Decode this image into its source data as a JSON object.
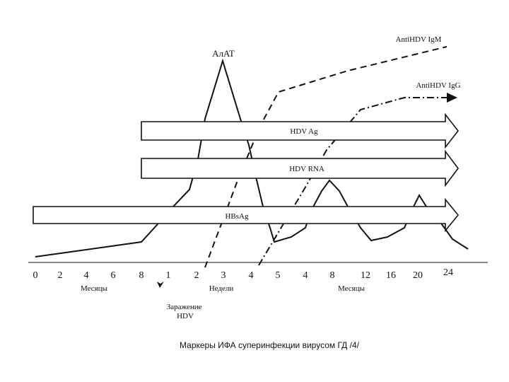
{
  "chart_data": {
    "type": "line",
    "title": "",
    "caption": "Маркеры ИФА суперинфекции вирусом ГД /4/",
    "x_ticks": [
      "0",
      "2",
      "4",
      "6",
      "8",
      "1",
      "2",
      "3",
      "4",
      "5",
      "4",
      "8",
      "12",
      "16",
      "20",
      "24"
    ],
    "time_units": [
      {
        "label": "Месяцы"
      },
      {
        "label": "Недели"
      },
      {
        "label": "Месяцы"
      }
    ],
    "infection_label": "Заражение\nHDV",
    "bars": [
      {
        "name": "HDV Ag"
      },
      {
        "name": "HDV RNA"
      },
      {
        "name": "HBsAg"
      }
    ],
    "series": [
      {
        "name": "AлAT",
        "style": "solid"
      },
      {
        "name": "AntiHDV IgM",
        "style": "dashed"
      },
      {
        "name": "AntiHDV IgG",
        "style": "dash-dot"
      }
    ]
  }
}
